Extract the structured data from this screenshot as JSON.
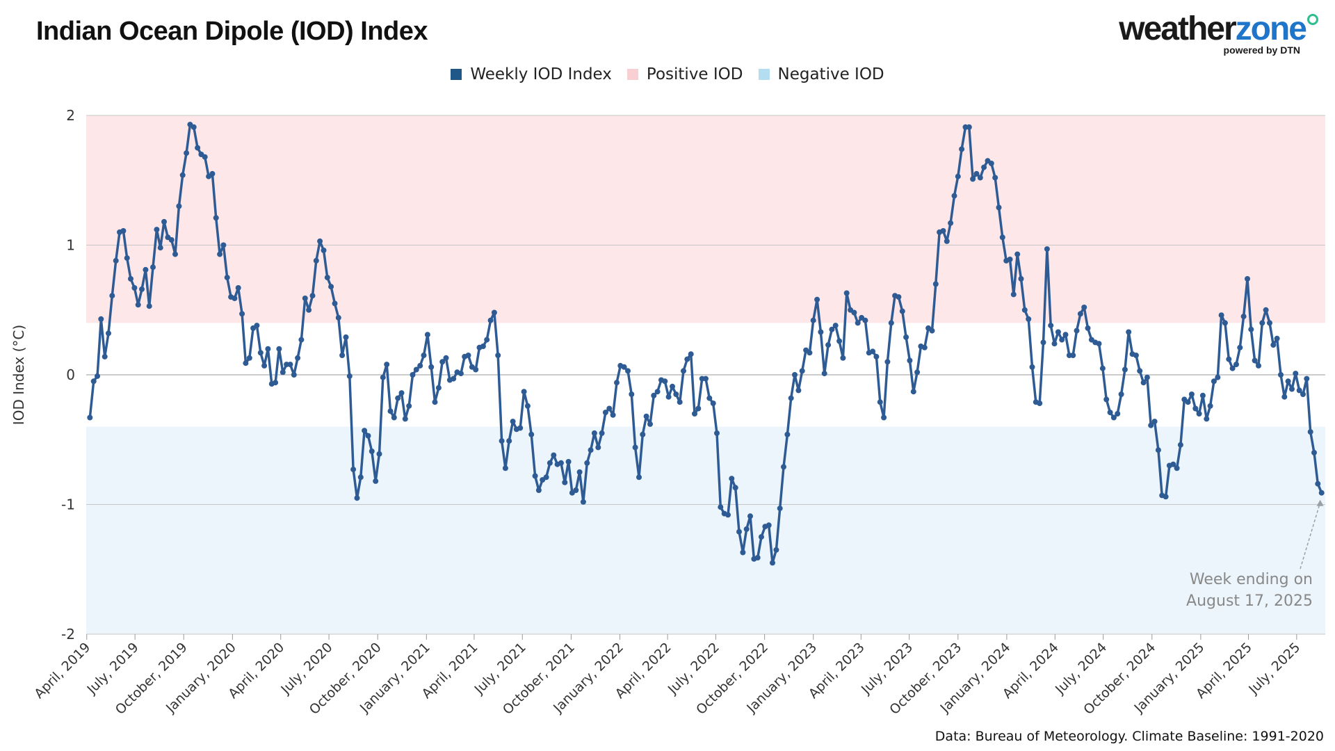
{
  "title": "Indian Ocean Dipole (IOD) Index",
  "logo": {
    "word_a": "weather",
    "word_b": "zone",
    "tagline": "powered by DTN"
  },
  "legend": [
    {
      "label": "Weekly IOD Index",
      "color": "#1f5788"
    },
    {
      "label": "Positive IOD",
      "color": "#f8cfd2"
    },
    {
      "label": "Negative IOD",
      "color": "#b5ddf0"
    }
  ],
  "source": "Data: Bureau of Meteorology. Climate Baseline: 1991-2020",
  "colors": {
    "line": "#2e5b94",
    "positive_band": "#fde7e8",
    "negative_band": "#ecf5fb"
  },
  "chart_data": {
    "type": "line",
    "ylabel": "IOD Index (°C)",
    "xlabel": "",
    "ylim": [
      -2,
      2
    ],
    "yticks": [
      "2",
      "1",
      "0",
      "-1",
      "-2"
    ],
    "xlim": [
      "2019-03-31",
      "2025-08-24"
    ],
    "x_tick_labels": [
      "April, 2019",
      "July, 2019",
      "October, 2019",
      "January, 2020",
      "April, 2020",
      "July, 2020",
      "October, 2020",
      "January, 2021",
      "April, 2021",
      "July, 2021",
      "October, 2021",
      "January, 2022",
      "April, 2022",
      "July, 2022",
      "October, 2022",
      "January, 2023",
      "April, 2023",
      "July, 2023",
      "October, 2023",
      "January, 2024",
      "April, 2024",
      "July, 2024",
      "October, 2024",
      "January, 2025",
      "April, 2025",
      "July, 2025"
    ],
    "thresholds": {
      "positive": 0.4,
      "negative": -0.4
    },
    "grid": true,
    "legend_position": "top",
    "annotation": {
      "text": [
        "Week ending on",
        "August 17, 2025"
      ],
      "date": "2025-08-17"
    },
    "series": [
      {
        "name": "Weekly IOD Index",
        "start": "2019-04-07",
        "interval_days": 7,
        "values": [
          -0.33,
          -0.05,
          -0.01,
          0.43,
          0.14,
          0.32,
          0.61,
          0.88,
          1.1,
          1.11,
          0.9,
          0.74,
          0.67,
          0.54,
          0.66,
          0.81,
          0.53,
          0.83,
          1.12,
          0.98,
          1.18,
          1.06,
          1.04,
          0.93,
          1.3,
          1.54,
          1.71,
          1.93,
          1.91,
          1.75,
          1.7,
          1.68,
          1.53,
          1.55,
          1.21,
          0.93,
          1.0,
          0.75,
          0.6,
          0.59,
          0.67,
          0.47,
          0.09,
          0.13,
          0.36,
          0.38,
          0.17,
          0.07,
          0.2,
          -0.07,
          -0.06,
          0.2,
          0.02,
          0.08,
          0.08,
          0.0,
          0.13,
          0.27,
          0.59,
          0.5,
          0.61,
          0.88,
          1.03,
          0.96,
          0.75,
          0.68,
          0.55,
          0.44,
          0.15,
          0.29,
          -0.01,
          -0.73,
          -0.95,
          -0.79,
          -0.43,
          -0.47,
          -0.59,
          -0.82,
          -0.61,
          -0.02,
          0.08,
          -0.28,
          -0.33,
          -0.18,
          -0.14,
          -0.34,
          -0.24,
          0.0,
          0.04,
          0.07,
          0.15,
          0.31,
          0.06,
          -0.21,
          -0.1,
          0.1,
          0.13,
          -0.04,
          -0.03,
          0.02,
          0.01,
          0.14,
          0.15,
          0.06,
          0.04,
          0.21,
          0.22,
          0.27,
          0.42,
          0.48,
          0.15,
          -0.51,
          -0.72,
          -0.51,
          -0.36,
          -0.42,
          -0.41,
          -0.13,
          -0.24,
          -0.46,
          -0.78,
          -0.89,
          -0.81,
          -0.79,
          -0.68,
          -0.62,
          -0.69,
          -0.68,
          -0.83,
          -0.67,
          -0.91,
          -0.89,
          -0.75,
          -0.98,
          -0.68,
          -0.58,
          -0.45,
          -0.56,
          -0.45,
          -0.29,
          -0.26,
          -0.31,
          -0.06,
          0.07,
          0.06,
          0.03,
          -0.15,
          -0.56,
          -0.79,
          -0.46,
          -0.32,
          -0.38,
          -0.16,
          -0.13,
          -0.04,
          -0.05,
          -0.17,
          -0.09,
          -0.15,
          -0.21,
          0.03,
          0.12,
          0.16,
          -0.3,
          -0.26,
          -0.03,
          -0.03,
          -0.18,
          -0.22,
          -0.45,
          -1.02,
          -1.07,
          -1.08,
          -0.8,
          -0.87,
          -1.21,
          -1.37,
          -1.19,
          -1.09,
          -1.42,
          -1.41,
          -1.25,
          -1.17,
          -1.16,
          -1.45,
          -1.35,
          -1.03,
          -0.71,
          -0.46,
          -0.18,
          0.0,
          -0.12,
          0.03,
          0.19,
          0.17,
          0.42,
          0.58,
          0.33,
          0.01,
          0.23,
          0.35,
          0.38,
          0.26,
          0.13,
          0.63,
          0.5,
          0.48,
          0.4,
          0.44,
          0.42,
          0.17,
          0.18,
          0.14,
          -0.21,
          -0.33,
          0.1,
          0.4,
          0.61,
          0.6,
          0.49,
          0.29,
          0.11,
          -0.13,
          0.02,
          0.22,
          0.21,
          0.36,
          0.34,
          0.7,
          1.1,
          1.11,
          1.03,
          1.17,
          1.38,
          1.53,
          1.74,
          1.91,
          1.91,
          1.51,
          1.55,
          1.52,
          1.6,
          1.65,
          1.63,
          1.52,
          1.29,
          1.06,
          0.88,
          0.89,
          0.62,
          0.93,
          0.74,
          0.5,
          0.43,
          0.06,
          -0.21,
          -0.22,
          0.25,
          0.97,
          0.38,
          0.24,
          0.33,
          0.27,
          0.31,
          0.15,
          0.15,
          0.34,
          0.47,
          0.52,
          0.36,
          0.27,
          0.25,
          0.24,
          0.05,
          -0.19,
          -0.29,
          -0.33,
          -0.3,
          -0.15,
          0.04,
          0.33,
          0.16,
          0.15,
          0.03,
          -0.06,
          -0.02,
          -0.39,
          -0.36,
          -0.58,
          -0.93,
          -0.94,
          -0.7,
          -0.69,
          -0.72,
          -0.54,
          -0.19,
          -0.21,
          -0.15,
          -0.26,
          -0.3,
          -0.16,
          -0.34,
          -0.24,
          -0.05,
          -0.02,
          0.46,
          0.4,
          0.12,
          0.05,
          0.08,
          0.21,
          0.45,
          0.74,
          0.35,
          0.11,
          0.07,
          0.4,
          0.5,
          0.4,
          0.23,
          0.28,
          0.0,
          -0.17,
          -0.05,
          -0.11,
          0.01,
          -0.12,
          -0.15,
          -0.03,
          -0.44,
          -0.6,
          -0.84,
          -0.91
        ]
      }
    ]
  }
}
